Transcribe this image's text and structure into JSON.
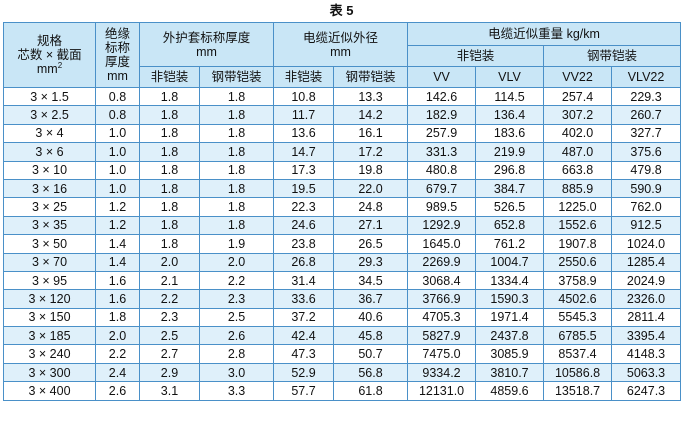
{
  "title": "表 5",
  "headers": {
    "spec_line1": "规格",
    "spec_line2": "芯数 × 截面",
    "spec_line3": "mm",
    "spec_sup": "2",
    "insulation_line1": "绝缘",
    "insulation_line2": "标称",
    "insulation_line3": "厚度",
    "insulation_line4": "mm",
    "sheath_title": "外护套标称厚度",
    "sheath_unit": "mm",
    "diameter_title": "电缆近似外径",
    "diameter_unit": "mm",
    "weight_title": "电缆近似重量 kg/km",
    "unarmored": "非铠装",
    "steel_tape_armored": "钢带铠装",
    "weight_unarmored": "非铠装",
    "weight_armored": "钢带铠装",
    "vv": "VV",
    "vlv": "VLV",
    "vv22": "VV22",
    "vlv22": "VLV22"
  },
  "rows": [
    [
      "3 × 1.5",
      "0.8",
      "1.8",
      "1.8",
      "10.8",
      "13.3",
      "142.6",
      "114.5",
      "257.4",
      "229.3"
    ],
    [
      "3 × 2.5",
      "0.8",
      "1.8",
      "1.8",
      "11.7",
      "14.2",
      "182.9",
      "136.4",
      "307.2",
      "260.7"
    ],
    [
      "3 × 4",
      "1.0",
      "1.8",
      "1.8",
      "13.6",
      "16.1",
      "257.9",
      "183.6",
      "402.0",
      "327.7"
    ],
    [
      "3 × 6",
      "1.0",
      "1.8",
      "1.8",
      "14.7",
      "17.2",
      "331.3",
      "219.9",
      "487.0",
      "375.6"
    ],
    [
      "3 × 10",
      "1.0",
      "1.8",
      "1.8",
      "17.3",
      "19.8",
      "480.8",
      "296.8",
      "663.8",
      "479.8"
    ],
    [
      "3 × 16",
      "1.0",
      "1.8",
      "1.8",
      "19.5",
      "22.0",
      "679.7",
      "384.7",
      "885.9",
      "590.9"
    ],
    [
      "3 × 25",
      "1.2",
      "1.8",
      "1.8",
      "22.3",
      "24.8",
      "989.5",
      "526.5",
      "1225.0",
      "762.0"
    ],
    [
      "3 × 35",
      "1.2",
      "1.8",
      "1.8",
      "24.6",
      "27.1",
      "1292.9",
      "652.8",
      "1552.6",
      "912.5"
    ],
    [
      "3 × 50",
      "1.4",
      "1.8",
      "1.9",
      "23.8",
      "26.5",
      "1645.0",
      "761.2",
      "1907.8",
      "1024.0"
    ],
    [
      "3 × 70",
      "1.4",
      "2.0",
      "2.0",
      "26.8",
      "29.3",
      "2269.9",
      "1004.7",
      "2550.6",
      "1285.4"
    ],
    [
      "3 × 95",
      "1.6",
      "2.1",
      "2.2",
      "31.4",
      "34.5",
      "3068.4",
      "1334.4",
      "3758.9",
      "2024.9"
    ],
    [
      "3 × 120",
      "1.6",
      "2.2",
      "2.3",
      "33.6",
      "36.7",
      "3766.9",
      "1590.3",
      "4502.6",
      "2326.0"
    ],
    [
      "3 × 150",
      "1.8",
      "2.3",
      "2.5",
      "37.2",
      "40.6",
      "4705.3",
      "1971.4",
      "5545.3",
      "2811.4"
    ],
    [
      "3 × 185",
      "2.0",
      "2.5",
      "2.6",
      "42.4",
      "45.8",
      "5827.9",
      "2437.8",
      "6785.5",
      "3395.4"
    ],
    [
      "3 × 240",
      "2.2",
      "2.7",
      "2.8",
      "47.3",
      "50.7",
      "7475.0",
      "3085.9",
      "8537.4",
      "4148.3"
    ],
    [
      "3 × 300",
      "2.4",
      "2.9",
      "3.0",
      "52.9",
      "56.8",
      "9334.2",
      "3810.7",
      "10586.8",
      "5063.3"
    ],
    [
      "3 × 400",
      "2.6",
      "3.1",
      "3.3",
      "57.7",
      "61.8",
      "12131.0",
      "4859.6",
      "13518.7",
      "6247.3"
    ]
  ],
  "colors": {
    "border": "#4a90c8",
    "header_bg": "#c9e6f6",
    "stripe_bg": "#dff0fa"
  }
}
